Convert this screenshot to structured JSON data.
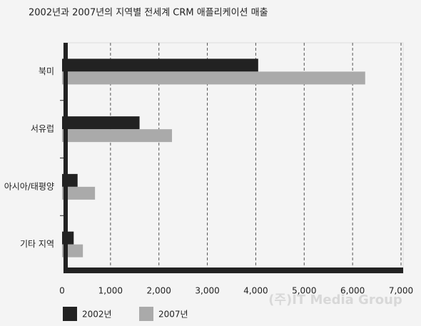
{
  "chart_data": {
    "type": "hbar",
    "title": "2002년과 2007년의 지역별 전세계  CRM 애플리케이션 매출",
    "categories": [
      "북미",
      "서유럽",
      "아시아/태평양",
      "기타 지역"
    ],
    "series": [
      {
        "name": "2002년",
        "color": "#222222",
        "values": [
          4050,
          1600,
          320,
          240
        ]
      },
      {
        "name": "2007년",
        "color": "#aaaaaa",
        "values": [
          6260,
          2270,
          680,
          430
        ]
      }
    ],
    "xlim": [
      0,
      7000
    ],
    "xticks": [
      0,
      {
        "value": 1000,
        "label": "1,000"
      },
      {
        "value": 2000,
        "label": "2,000"
      },
      {
        "value": 3000,
        "label": "3,000"
      },
      {
        "value": 4000,
        "label": "4,000"
      },
      {
        "value": 5000,
        "label": "5,000"
      },
      {
        "value": 6000,
        "label": "6,000"
      },
      {
        "value": 7000,
        "label": "7,000"
      }
    ],
    "grid": true,
    "legend": "bottom",
    "annotation": "(주)IT Media Group"
  }
}
